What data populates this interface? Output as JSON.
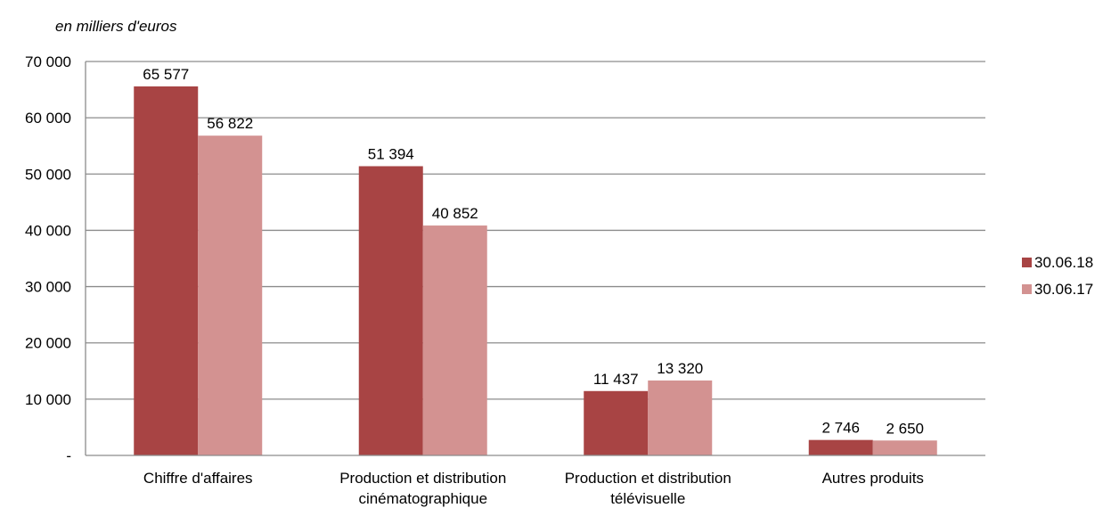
{
  "chart_data": {
    "type": "bar",
    "unit_label": "en milliers d'euros",
    "categories": [
      [
        "Chiffre d'affaires"
      ],
      [
        "Production et distribution",
        "cinématographique"
      ],
      [
        "Production et distribution",
        "télévisuelle"
      ],
      [
        "Autres produits"
      ]
    ],
    "series": [
      {
        "name": "30.06.18",
        "color": "#a84444",
        "values": [
          65577,
          51394,
          11437,
          2746
        ],
        "labels": [
          "65 577",
          "51 394",
          "11 437",
          "2 746"
        ]
      },
      {
        "name": "30.06.17",
        "color": "#d39291",
        "values": [
          56822,
          40852,
          13320,
          2650
        ],
        "labels": [
          "56 822",
          "40 852",
          "13 320",
          "2 650"
        ]
      }
    ],
    "ylim": [
      0,
      70000
    ],
    "yticks": [
      0,
      10000,
      20000,
      30000,
      40000,
      50000,
      60000,
      70000
    ],
    "ytick_labels": [
      "-",
      "10 000",
      "20 000",
      "30 000",
      "40 000",
      "50 000",
      "60 000",
      "70 000"
    ],
    "grid": true,
    "legend_position": "right"
  }
}
